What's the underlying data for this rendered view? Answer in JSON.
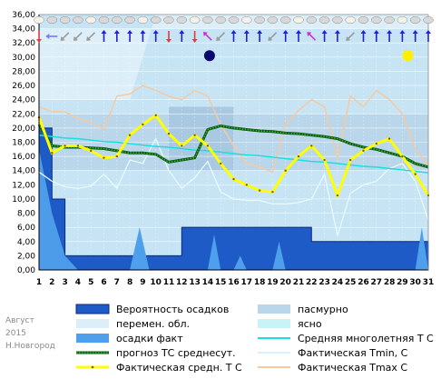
{
  "chart_data": {
    "type": "area",
    "caption": [
      "Август",
      "2015",
      "Н.Новгород"
    ],
    "x": [
      1,
      2,
      3,
      4,
      5,
      6,
      7,
      8,
      9,
      10,
      11,
      12,
      13,
      14,
      15,
      16,
      17,
      18,
      19,
      20,
      21,
      22,
      23,
      24,
      25,
      26,
      27,
      28,
      29,
      30,
      31
    ],
    "ylim": [
      0,
      36
    ],
    "yticks": [
      "0,00",
      "2,00",
      "4,00",
      "6,00",
      "8,00",
      "10,00",
      "12,00",
      "14,00",
      "16,00",
      "18,00",
      "20,00",
      "22,00",
      "24,00",
      "26,00",
      "28,00",
      "30,00",
      "32,00",
      "34,00",
      "36,00"
    ],
    "legend": [
      {
        "label": "Вероятность осадков",
        "key": "precip_prob"
      },
      {
        "label": "пасмурно",
        "key": "overcast"
      },
      {
        "label": "перемен. обл.",
        "key": "variable"
      },
      {
        "label": "ясно",
        "key": "clear"
      },
      {
        "label": "осадки факт",
        "key": "precip_fact"
      },
      {
        "label": "Средняя многолетняя Т С",
        "key": "normal"
      },
      {
        "label": "прогноз ТС среднесут.",
        "key": "forecast"
      },
      {
        "label": "Фактическая Tmin, С",
        "key": "tmin"
      },
      {
        "label": "Фактическая средн. Т С",
        "key": "tmean"
      },
      {
        "label": "Фактическая Tmax С",
        "key": "tmax"
      }
    ],
    "series": {
      "tmean": [
        21.5,
        16.5,
        17.5,
        17.5,
        16.8,
        15.8,
        16.0,
        19.0,
        20.5,
        21.8,
        19.2,
        17.5,
        19.0,
        17.5,
        15.0,
        12.8,
        12.0,
        11.2,
        11.0,
        14.0,
        16.0,
        17.5,
        15.5,
        10.5,
        15.5,
        16.8,
        17.8,
        18.5,
        16.0,
        13.5,
        10.5
      ],
      "tmax": [
        23.0,
        22.3,
        22.3,
        21.3,
        20.8,
        19.8,
        24.5,
        24.8,
        26.0,
        25.3,
        24.5,
        24.0,
        25.3,
        24.5,
        20.5,
        17.5,
        15.0,
        14.5,
        13.8,
        20.5,
        22.5,
        24.0,
        23.0,
        15.8,
        24.5,
        23.0,
        25.3,
        24.0,
        22.0,
        17.0,
        14.8
      ],
      "tmin": [
        13.8,
        12.5,
        11.7,
        11.5,
        11.8,
        13.5,
        11.5,
        15.5,
        15.0,
        18.5,
        14.0,
        11.5,
        13.0,
        15.3,
        11.0,
        10.0,
        9.8,
        9.8,
        9.3,
        9.3,
        9.5,
        10.0,
        13.5,
        4.8,
        10.8,
        12.0,
        12.5,
        14.3,
        15.0,
        12.5,
        7.0
      ],
      "normal": [
        19.0,
        18.8,
        18.6,
        18.5,
        18.3,
        18.1,
        18.0,
        17.8,
        17.6,
        17.4,
        17.3,
        17.1,
        16.9,
        16.8,
        16.6,
        16.4,
        16.2,
        16.1,
        15.9,
        15.7,
        15.5,
        15.3,
        15.2,
        15.0,
        14.8,
        14.6,
        14.5,
        14.3,
        14.1,
        13.9,
        13.7
      ],
      "forecast": [
        20.5,
        17.5,
        17.3,
        17.3,
        17.2,
        17.1,
        16.8,
        16.5,
        16.5,
        16.3,
        15.2,
        15.5,
        15.8,
        19.8,
        20.3,
        20.0,
        19.8,
        19.6,
        19.5,
        19.3,
        19.2,
        19.0,
        18.8,
        18.5,
        17.8,
        17.3,
        17.0,
        16.5,
        16.0,
        15.0,
        14.5
      ],
      "precip_prob": [
        20,
        10,
        2,
        2,
        2,
        2,
        2,
        2,
        2,
        2,
        2,
        6,
        6,
        6,
        6,
        6,
        6,
        6,
        6,
        6,
        6,
        4,
        4,
        4,
        4,
        4,
        4,
        4,
        4,
        4,
        4
      ],
      "precip_fact": [
        17,
        8,
        2,
        0,
        0,
        0,
        0,
        0,
        0,
        0,
        0,
        0,
        0,
        0,
        0,
        0,
        0,
        0,
        0,
        0,
        0,
        0,
        0,
        0,
        0,
        0,
        0,
        0,
        0,
        0,
        0
      ],
      "precip_fact_extra": [
        [
          8,
          9.5,
          6
        ],
        [
          14,
          15,
          5
        ],
        [
          16,
          17,
          2
        ],
        [
          19,
          20,
          4
        ],
        [
          30,
          31,
          6
        ]
      ]
    },
    "sun_days": [
      14,
      29
    ],
    "sun_colors": [
      "#0a0a6e",
      "#ffee00"
    ]
  }
}
